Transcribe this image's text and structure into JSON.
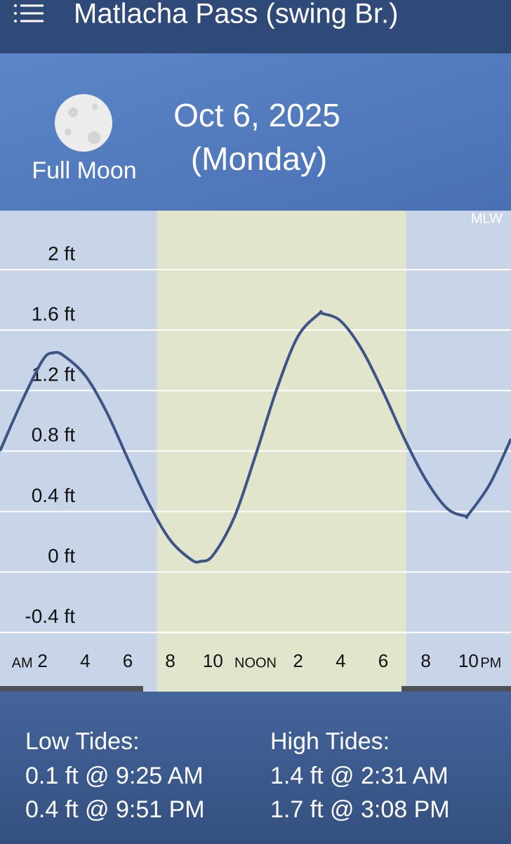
{
  "header": {
    "title": "Matlacha Pass (swing Br.)"
  },
  "moon": {
    "phase": "Full Moon"
  },
  "date": {
    "line1": "Oct 6, 2025",
    "line2": "(Monday)"
  },
  "chart_data": {
    "type": "line",
    "datum_label": "MLW",
    "x": [
      0,
      1,
      2,
      2.52,
      3,
      4,
      5,
      6,
      7,
      8,
      9,
      9.42,
      10,
      11,
      12,
      13,
      14,
      15,
      15.13,
      16,
      17,
      18,
      19,
      20,
      21,
      21.85,
      22,
      23,
      24
    ],
    "values": [
      0.8,
      1.12,
      1.4,
      1.45,
      1.43,
      1.3,
      1.06,
      0.75,
      0.45,
      0.21,
      0.08,
      0.07,
      0.11,
      0.36,
      0.77,
      1.21,
      1.56,
      1.71,
      1.71,
      1.66,
      1.47,
      1.19,
      0.88,
      0.61,
      0.42,
      0.37,
      0.38,
      0.58,
      0.88
    ],
    "color": "#3d5487",
    "xlim": [
      0,
      24
    ],
    "xticks": [
      2,
      4,
      6,
      8,
      10,
      {
        "value": 12,
        "label": "NOON"
      },
      {
        "value": 14,
        "label": "2"
      },
      {
        "value": 16,
        "label": "4"
      },
      {
        "value": 18,
        "label": "6"
      },
      {
        "value": 20,
        "label": "8"
      },
      {
        "value": 22,
        "label": "10"
      }
    ],
    "x_am_label": "AM",
    "x_pm_label": "PM",
    "ylim": [
      -0.42,
      2.39
    ],
    "yticks": [
      {
        "value": 2,
        "label": "2 ft"
      },
      {
        "value": 1.6,
        "label": "1.6 ft"
      },
      {
        "value": 1.2,
        "label": "1.2 ft"
      },
      {
        "value": 0.8,
        "label": "0.8 ft"
      },
      {
        "value": 0.4,
        "label": "0.4 ft"
      },
      {
        "value": 0,
        "label": "0 ft"
      },
      {
        "value": -0.4,
        "label": "-0.4 ft"
      }
    ],
    "grid": true,
    "daylight_hours": [
      7.37,
      19.08
    ]
  },
  "tides": {
    "low": {
      "title": "Low Tides:",
      "entries": [
        "0.1 ft @ 9:25 AM",
        "0.4 ft @ 9:51 PM"
      ]
    },
    "high": {
      "title": "High Tides:",
      "entries": [
        "1.4 ft @ 2:31 AM",
        "1.7 ft @ 3:08 PM"
      ]
    }
  }
}
